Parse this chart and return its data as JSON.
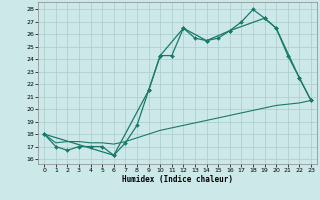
{
  "title": "",
  "xlabel": "Humidex (Indice chaleur)",
  "bg_color": "#cce8e8",
  "grid_color": "#aacccc",
  "line_color": "#1a7a6a",
  "xlim": [
    -0.5,
    23.5
  ],
  "ylim": [
    15.6,
    28.6
  ],
  "yticks": [
    16,
    17,
    18,
    19,
    20,
    21,
    22,
    23,
    24,
    25,
    26,
    27,
    28
  ],
  "xticks": [
    0,
    1,
    2,
    3,
    4,
    5,
    6,
    7,
    8,
    9,
    10,
    11,
    12,
    13,
    14,
    15,
    16,
    17,
    18,
    19,
    20,
    21,
    22,
    23
  ],
  "series1_x": [
    0,
    1,
    2,
    3,
    4,
    5,
    6,
    7,
    8,
    9,
    10,
    11,
    12,
    13,
    14,
    15,
    16,
    17,
    18,
    19,
    20,
    21,
    22,
    23
  ],
  "series1_y": [
    18.0,
    17.0,
    16.7,
    17.0,
    17.0,
    17.0,
    16.3,
    17.3,
    18.7,
    21.5,
    24.3,
    24.3,
    26.5,
    25.7,
    25.5,
    25.7,
    26.3,
    27.0,
    28.0,
    27.3,
    26.5,
    24.3,
    22.5,
    20.7
  ],
  "series3_x": [
    0,
    1,
    2,
    3,
    4,
    5,
    6,
    7,
    8,
    9,
    10,
    11,
    12,
    13,
    14,
    15,
    16,
    17,
    18,
    19,
    20,
    21,
    22,
    23
  ],
  "series3_y": [
    18.0,
    17.3,
    17.4,
    17.4,
    17.3,
    17.3,
    17.2,
    17.4,
    17.7,
    18.0,
    18.3,
    18.5,
    18.7,
    18.9,
    19.1,
    19.3,
    19.5,
    19.7,
    19.9,
    20.1,
    20.3,
    20.4,
    20.5,
    20.7
  ],
  "series4_x": [
    0,
    6,
    9,
    10,
    12,
    14,
    16,
    19,
    20,
    22,
    23
  ],
  "series4_y": [
    18.0,
    16.3,
    21.5,
    24.3,
    26.5,
    25.5,
    26.3,
    27.3,
    26.5,
    22.5,
    20.7
  ]
}
